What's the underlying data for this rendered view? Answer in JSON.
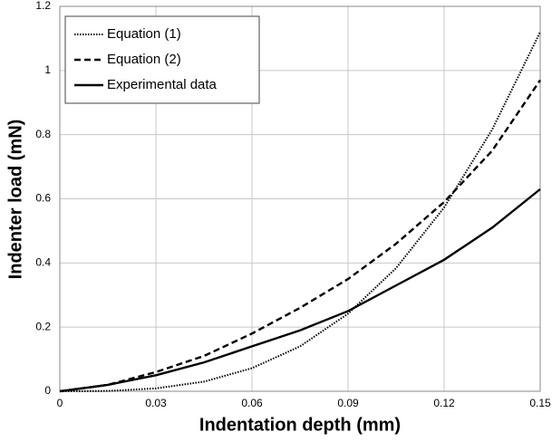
{
  "chart_data": {
    "type": "line",
    "x_label": "Indentation depth (mm)",
    "y_label": "Indenter load (mN)",
    "x": [
      0,
      0.015,
      0.03,
      0.045,
      0.06,
      0.075,
      0.09,
      0.105,
      0.12,
      0.135,
      0.15
    ],
    "series": [
      {
        "name": "Equation (1)",
        "color": "#000000",
        "dash": "dotted",
        "values": [
          0,
          0.001,
          0.009,
          0.03,
          0.072,
          0.14,
          0.242,
          0.384,
          0.573,
          0.816,
          1.12
        ]
      },
      {
        "name": "Equation (2)",
        "color": "#000000",
        "dash": "dashed",
        "values": [
          0,
          0.02,
          0.06,
          0.11,
          0.18,
          0.26,
          0.35,
          0.46,
          0.59,
          0.75,
          0.97
        ]
      },
      {
        "name": "Experimental data",
        "color": "#000000",
        "dash": "solid",
        "values": [
          0,
          0.02,
          0.05,
          0.09,
          0.14,
          0.19,
          0.25,
          0.33,
          0.41,
          0.51,
          0.63
        ]
      }
    ],
    "xlim": [
      0,
      0.15
    ],
    "xticks": [
      0,
      0.03,
      0.06,
      0.09,
      0.12,
      0.15
    ],
    "ylim": [
      0,
      1.2
    ],
    "yticks": [
      0,
      0.2,
      0.4,
      0.6,
      0.8,
      1,
      1.2
    ],
    "grid": true,
    "legend": "top-left"
  }
}
